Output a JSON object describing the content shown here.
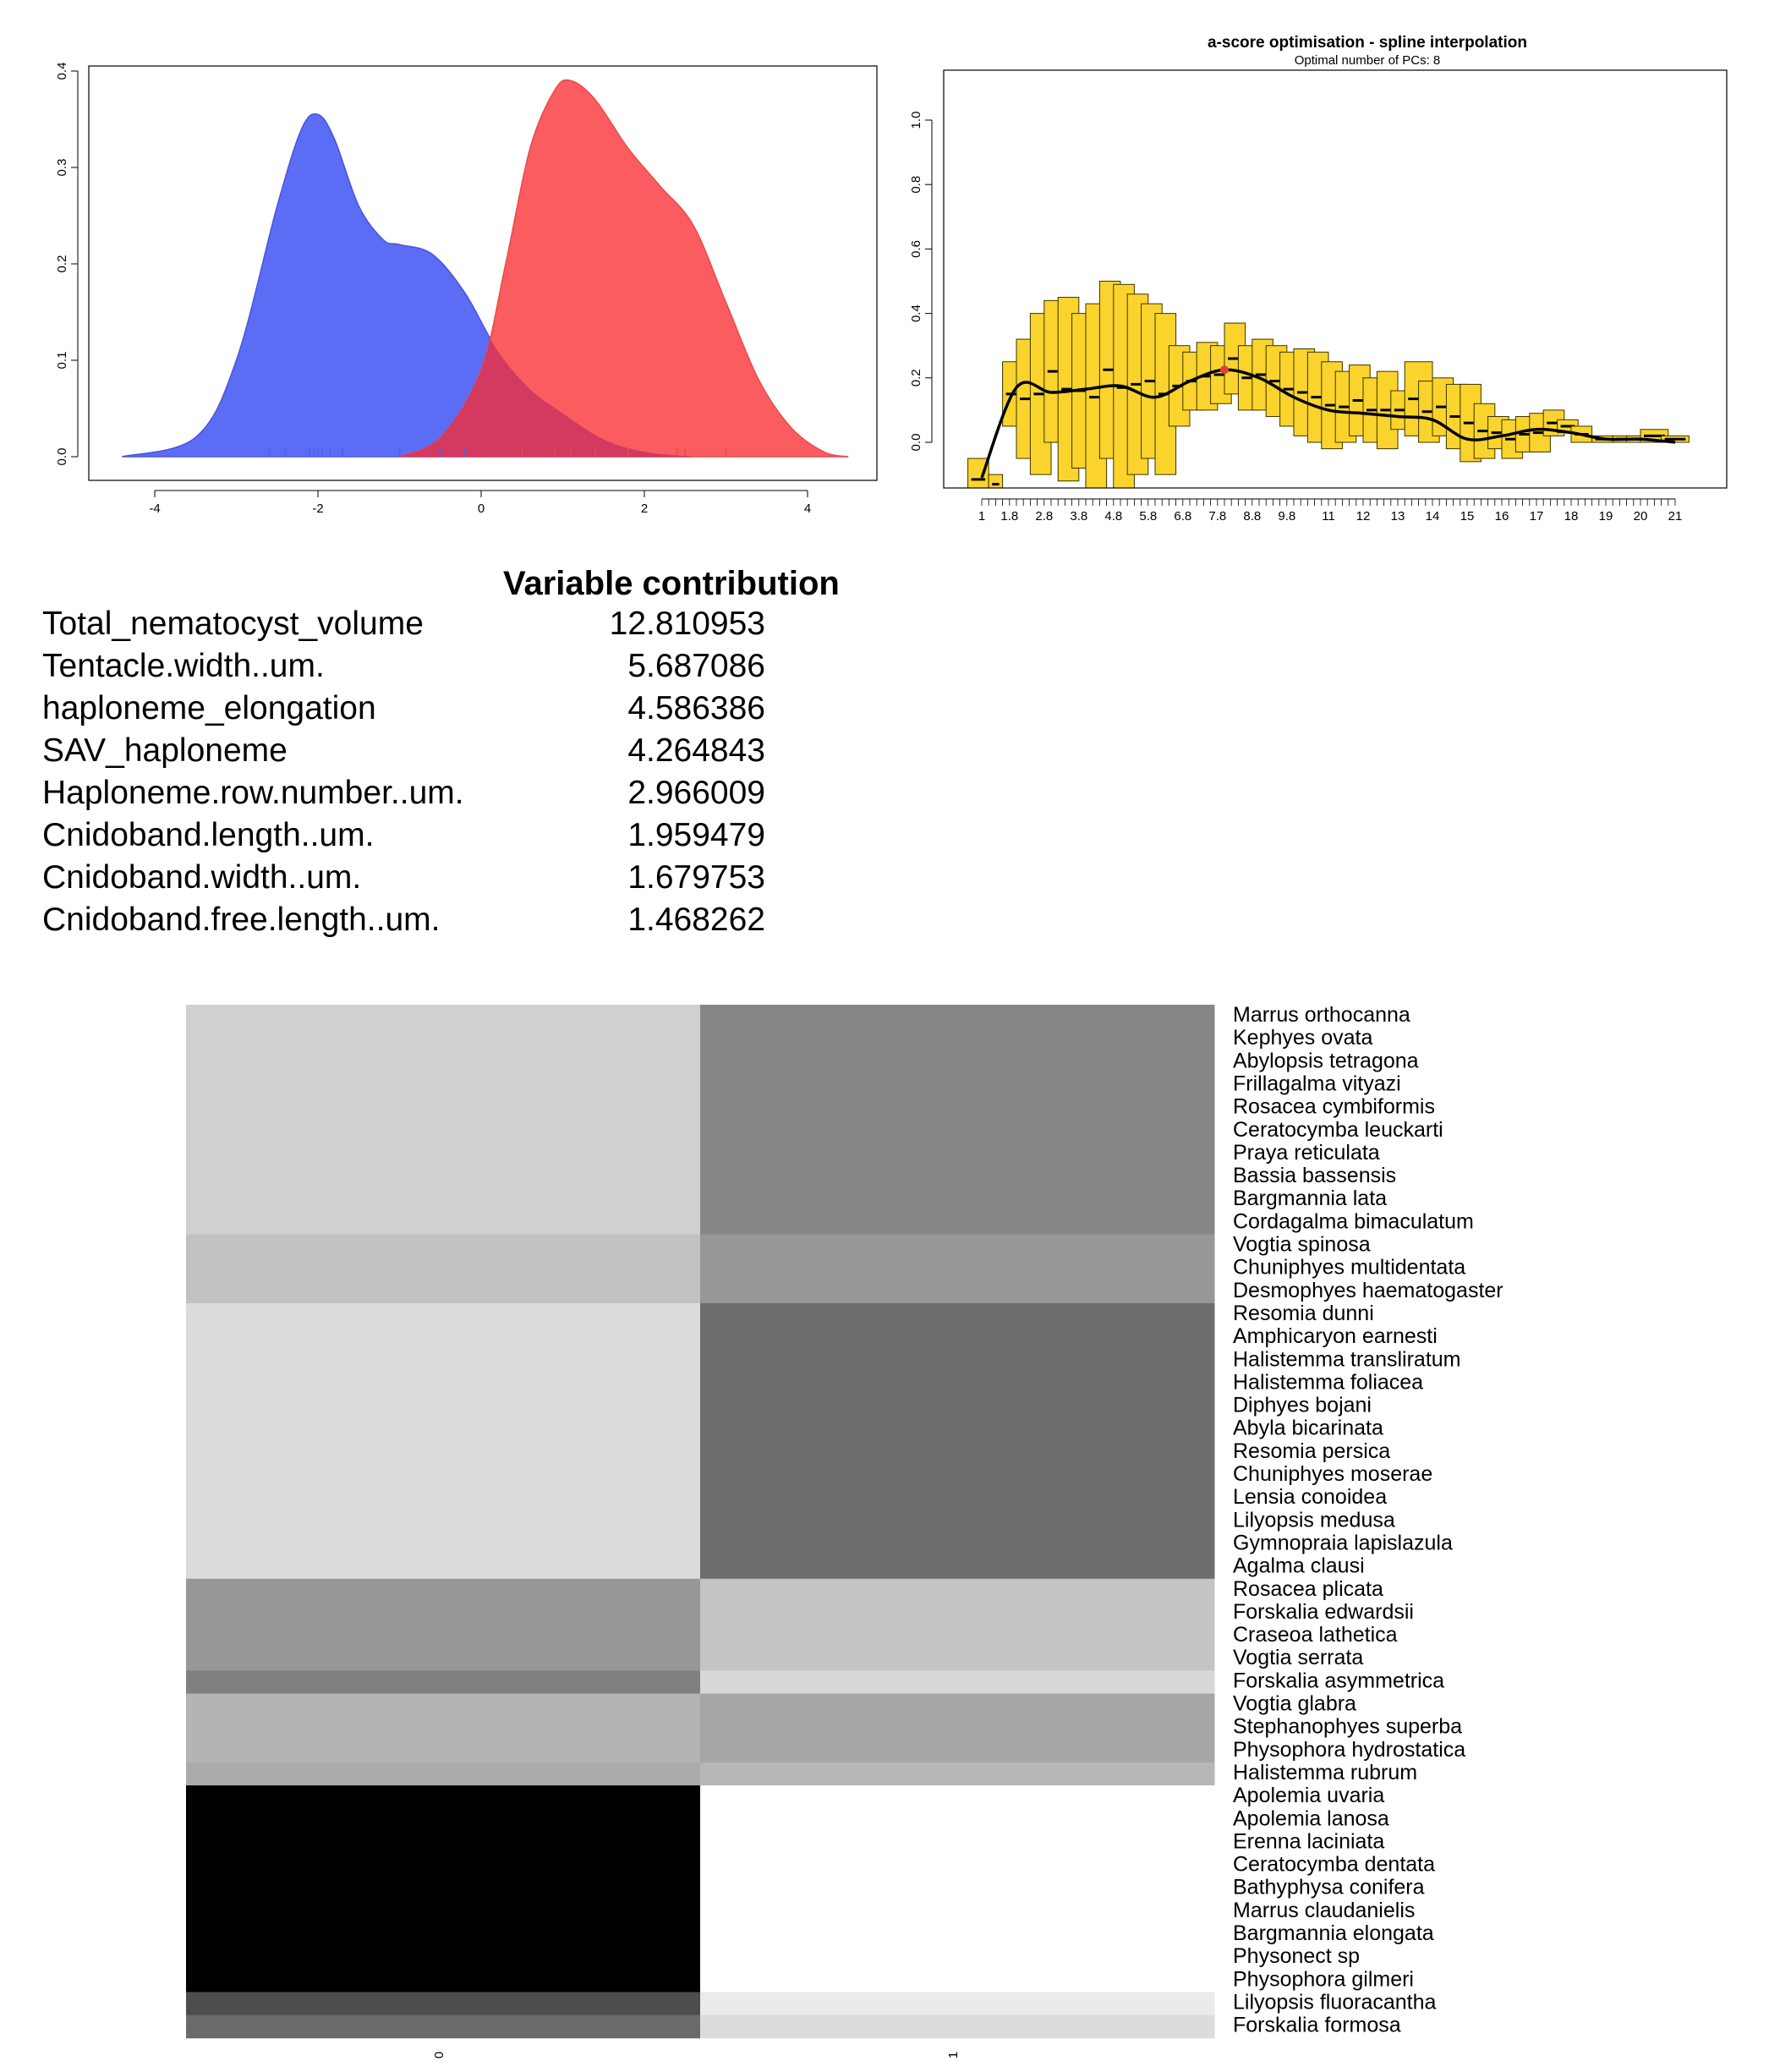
{
  "density_plot": {
    "y_ticks": [
      "0.0",
      "0.1",
      "0.2",
      "0.3",
      "0.4"
    ],
    "x_ticks": [
      "-4",
      "-2",
      "0",
      "2",
      "4"
    ],
    "colors": {
      "blue": "#5b6cf5",
      "red": "#fb5c5f",
      "overlap": "#cf3561"
    }
  },
  "ascore_plot": {
    "title": "a-score optimisation - spline interpolation",
    "subtitle": "Optimal number of PCs: 8",
    "y_ticks": [
      "0.0",
      "0.2",
      "0.4",
      "0.6",
      "0.8",
      "1.0"
    ],
    "x_tick_labels": [
      "1",
      "1.8",
      "2.8",
      "3.8",
      "4.8",
      "5.8",
      "6.8",
      "7.8",
      "8.8",
      "9.8",
      "11",
      "12",
      "13",
      "14",
      "15",
      "16",
      "17",
      "18",
      "19",
      "20",
      "21"
    ],
    "box_color": "#fad42c",
    "optimal_point_color": "#e43d3d"
  },
  "chart_data": [
    {
      "type": "area",
      "xlim": [
        -4.5,
        4.5
      ],
      "ylim": [
        0,
        0.4
      ],
      "series": [
        {
          "x": [
            -4.4,
            -3.5,
            -3.0,
            -2.5,
            -2.2,
            -2.0,
            -1.8,
            -1.5,
            -1.2,
            -1.0,
            -0.6,
            -0.2,
            0.2,
            0.6,
            1.0,
            1.5,
            2.0,
            2.6
          ],
          "y": [
            0.0,
            0.02,
            0.1,
            0.26,
            0.34,
            0.355,
            0.33,
            0.26,
            0.225,
            0.22,
            0.21,
            0.17,
            0.11,
            0.07,
            0.045,
            0.018,
            0.005,
            0.0
          ]
        },
        {
          "x": [
            -1.0,
            -0.5,
            0.0,
            0.3,
            0.6,
            0.9,
            1.1,
            1.4,
            1.8,
            2.2,
            2.6,
            3.0,
            3.4,
            3.8,
            4.2,
            4.5
          ],
          "y": [
            0.0,
            0.02,
            0.09,
            0.2,
            0.32,
            0.38,
            0.39,
            0.37,
            0.32,
            0.28,
            0.24,
            0.16,
            0.08,
            0.03,
            0.005,
            0.0
          ]
        }
      ],
      "rug_blue": [
        -2.6,
        -2.4,
        -2.1,
        -2.05,
        -2.0,
        -1.95,
        -1.85,
        -1.7,
        -1.0,
        -0.5,
        -0.2
      ],
      "rug_red": [
        0.5,
        0.9,
        1.1,
        1.4,
        1.8,
        2.4,
        2.5,
        3.0
      ]
    },
    {
      "type": "line",
      "title": "a-score optimisation - spline interpolation",
      "subtitle": "Optimal number of PCs: 8",
      "ylim": [
        -0.15,
        1.15
      ],
      "xlim": [
        0,
        22.5
      ],
      "x": [
        1,
        2,
        3,
        4,
        5,
        6,
        7,
        8,
        9,
        10,
        11,
        12,
        13,
        14,
        15,
        16,
        17,
        18,
        19,
        20,
        21
      ],
      "values": [
        -0.11,
        0.17,
        0.155,
        0.165,
        0.175,
        0.14,
        0.19,
        0.225,
        0.2,
        0.14,
        0.1,
        0.09,
        0.08,
        0.07,
        0.01,
        0.02,
        0.04,
        0.03,
        0.01,
        0.01,
        0.0
      ],
      "optimal_x": 8,
      "boxes": [
        [
          0.6,
          1.2,
          -0.18,
          -0.05
        ],
        [
          1.2,
          1.6,
          -0.16,
          -0.1
        ],
        [
          1.6,
          2.2,
          0.05,
          0.25
        ],
        [
          2.0,
          2.6,
          -0.05,
          0.32
        ],
        [
          2.4,
          3.0,
          -0.1,
          0.4
        ],
        [
          2.8,
          3.4,
          0.0,
          0.44
        ],
        [
          3.2,
          3.8,
          -0.12,
          0.45
        ],
        [
          3.6,
          4.2,
          -0.08,
          0.4
        ],
        [
          4.0,
          4.6,
          -0.15,
          0.43
        ],
        [
          4.4,
          5.0,
          -0.05,
          0.5
        ],
        [
          4.8,
          5.4,
          -0.15,
          0.49
        ],
        [
          5.2,
          5.8,
          -0.1,
          0.46
        ],
        [
          5.6,
          6.2,
          -0.05,
          0.43
        ],
        [
          6.0,
          6.6,
          -0.1,
          0.4
        ],
        [
          6.4,
          7.0,
          0.05,
          0.3
        ],
        [
          6.8,
          7.4,
          0.1,
          0.28
        ],
        [
          7.2,
          7.8,
          0.1,
          0.31
        ],
        [
          7.6,
          8.2,
          0.12,
          0.3
        ],
        [
          8.0,
          8.6,
          0.15,
          0.37
        ],
        [
          8.4,
          9.0,
          0.1,
          0.3
        ],
        [
          8.8,
          9.4,
          0.1,
          0.32
        ],
        [
          9.2,
          9.8,
          0.08,
          0.3
        ],
        [
          9.6,
          10.2,
          0.05,
          0.28
        ],
        [
          10.0,
          10.6,
          0.02,
          0.29
        ],
        [
          10.4,
          11.0,
          0.0,
          0.28
        ],
        [
          10.8,
          11.4,
          -0.02,
          0.25
        ],
        [
          11.2,
          11.8,
          0.0,
          0.22
        ],
        [
          11.6,
          12.2,
          0.02,
          0.24
        ],
        [
          12.0,
          12.6,
          0.0,
          0.2
        ],
        [
          12.4,
          13.0,
          -0.02,
          0.22
        ],
        [
          12.8,
          13.4,
          0.04,
          0.16
        ],
        [
          13.2,
          14.0,
          0.02,
          0.25
        ],
        [
          13.6,
          14.2,
          0.0,
          0.19
        ],
        [
          14.0,
          14.6,
          0.02,
          0.2
        ],
        [
          14.4,
          15.0,
          -0.02,
          0.18
        ],
        [
          14.8,
          15.4,
          -0.06,
          0.18
        ],
        [
          15.2,
          15.8,
          -0.05,
          0.12
        ],
        [
          15.6,
          16.2,
          -0.02,
          0.08
        ],
        [
          16.0,
          16.6,
          -0.05,
          0.07
        ],
        [
          16.4,
          17.0,
          -0.03,
          0.08
        ],
        [
          16.8,
          17.4,
          -0.03,
          0.09
        ],
        [
          17.2,
          17.8,
          0.02,
          0.1
        ],
        [
          17.6,
          18.2,
          0.03,
          0.07
        ],
        [
          18.0,
          18.6,
          0.0,
          0.05
        ],
        [
          18.6,
          19.2,
          0.0,
          0.02
        ],
        [
          19.2,
          19.8,
          0.0,
          0.02
        ],
        [
          19.6,
          20.2,
          0.0,
          0.02
        ],
        [
          20.0,
          20.8,
          0.0,
          0.04
        ],
        [
          20.6,
          21.4,
          0.0,
          0.02
        ]
      ]
    },
    {
      "type": "heatmap",
      "columns": [
        "0",
        "1"
      ],
      "rows": [
        {
          "labels": [
            "Marrus orthocanna",
            "Kephyes ovata",
            "Abylopsis tetragona",
            "Frillagalma vityazi",
            "Rosacea cymbiformis",
            "Ceratocymba leuckarti",
            "Praya reticulata",
            "Bassia bassensis",
            "Bargmannia lata",
            "Cordagalma bimaculatum"
          ],
          "values": [
            "#d0d0d0",
            "#868686"
          ]
        },
        {
          "labels": [
            "Vogtia spinosa",
            "Chuniphyes multidentata",
            "Desmophyes haematogaster"
          ],
          "values": [
            "#c1c1c1",
            "#979797"
          ]
        },
        {
          "labels": [
            "Resomia dunni",
            "Amphicaryon earnesti",
            "Halistemma transliratum",
            "Halistemma foliacea",
            "Diphyes bojani",
            "Abyla bicarinata",
            "Resomia persica",
            "Chuniphyes moserae",
            "Lensia conoidea",
            "Lilyopsis medusa",
            "Gymnopraia lapislazula",
            "Agalma clausi"
          ],
          "values": [
            "#dbdbdb",
            "#6d6d6d"
          ]
        },
        {
          "labels": [
            "Rosacea plicata",
            "Forskalia edwardsii",
            "Craseoa lathetica",
            "Vogtia serrata"
          ],
          "values": [
            "#979797",
            "#c4c4c4"
          ]
        },
        {
          "labels": [
            "Forskalia asymmetrica"
          ],
          "values": [
            "#808080",
            "#d8d8d8"
          ]
        },
        {
          "labels": [
            "Vogtia glabra",
            "Stephanophyes superba",
            "Physophora hydrostatica"
          ],
          "values": [
            "#b4b4b4",
            "#a6a6a6"
          ]
        },
        {
          "labels": [
            "Halistemma rubrum"
          ],
          "values": [
            "#ababab",
            "#b7b7b7"
          ]
        },
        {
          "labels": [
            "Apolemia uvaria",
            "Apolemia lanosa",
            "Erenna laciniata",
            "Ceratocymba dentata",
            "Bathyphysa conifera",
            "Marrus claudanielis",
            "Bargmannia elongata",
            "Physonect sp",
            "Physophora gilmeri"
          ],
          "values": [
            "#000000",
            "#ffffff"
          ]
        },
        {
          "labels": [
            "Lilyopsis fluoracantha"
          ],
          "values": [
            "#4d4d4d",
            "#ebebeb"
          ]
        },
        {
          "labels": [
            "Forskalia formosa"
          ],
          "values": [
            "#6a6a6a",
            "#dcdcdc"
          ]
        }
      ]
    }
  ],
  "contribution": {
    "title": "Variable contribution",
    "rows": [
      {
        "name": "Total_nematocyst_volume",
        "value": "12.810953"
      },
      {
        "name": "Tentacle.width..um.",
        "value": "5.687086"
      },
      {
        "name": "haploneme_elongation",
        "value": "4.586386"
      },
      {
        "name": "SAV_haploneme",
        "value": "4.264843"
      },
      {
        "name": "Haploneme.row.number..um.",
        "value": "2.966009"
      },
      {
        "name": "Cnidoband.length..um.",
        "value": "1.959479"
      },
      {
        "name": "Cnidoband.width..um.",
        "value": "1.679753"
      },
      {
        "name": "Cnidoband.free.length..um.",
        "value": "1.468262"
      }
    ]
  }
}
